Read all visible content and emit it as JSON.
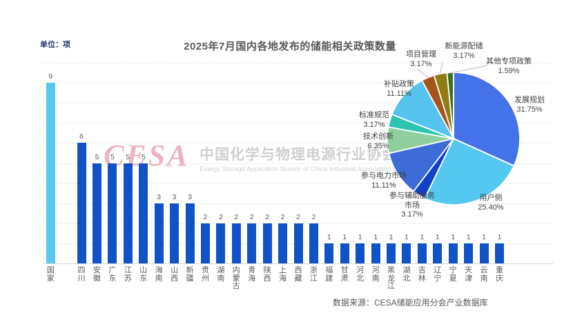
{
  "page": {
    "unit_label": "单位：项",
    "title": "2025年7月国内各地发布的储能相关政策数量",
    "source": "数据来源：CESA储能应用分会产业数据库",
    "watermark_logo": "CESA",
    "watermark_cn": "中国化学与物理电源行业协会储能应用分",
    "watermark_en": "Energy Storage Application Branch of China Industrial Association of Power Sou"
  },
  "colors": {
    "bar_national": "#5BC6F0",
    "bar_region": "#1152C6",
    "grid": "#E2E2E2",
    "axis": "#D6D6D6",
    "text_grey": "#595959"
  },
  "chart_data": [
    {
      "type": "bar",
      "title": "2025年7月国内各地发布的储能相关政策数量",
      "unit": "单位：项",
      "ylim": [
        0,
        10
      ],
      "grid": true,
      "gap_after_first": true,
      "categories": [
        "国家",
        "四川",
        "安徽",
        "广东",
        "江苏",
        "山东",
        "海南",
        "山西",
        "新疆",
        "贵州",
        "湖南",
        "内蒙古",
        "青海",
        "陕西",
        "上海",
        "西藏",
        "浙江",
        "福建",
        "甘肃",
        "河北",
        "河南",
        "黑龙江",
        "湖北",
        "吉林",
        "辽宁",
        "宁夏",
        "天津",
        "云南",
        "重庆"
      ],
      "values": [
        9,
        6,
        5,
        5,
        5,
        5,
        3,
        3,
        3,
        2,
        2,
        2,
        2,
        2,
        2,
        2,
        2,
        1,
        1,
        1,
        1,
        1,
        1,
        1,
        1,
        1,
        1,
        1,
        1
      ],
      "bar_colors": {
        "国家": "#5BC6F0",
        "default": "#1152C6"
      }
    },
    {
      "type": "pie",
      "legend_position": "outside-labels",
      "slices": [
        {
          "label": "发展规划",
          "pct": 31.75,
          "color": "#4472E8"
        },
        {
          "label": "用户侧",
          "pct": 25.4,
          "color": "#55C8F2"
        },
        {
          "label": "参与辅助服务市场",
          "pct": 3.17,
          "color": "#1240C8",
          "label_lines": [
            "参与辅助服务",
            "市场"
          ]
        },
        {
          "label": "参与电力市场",
          "pct": 11.11,
          "color": "#3D6BD8"
        },
        {
          "label": "技术创新",
          "pct": 6.35,
          "color": "#8FCF9E"
        },
        {
          "label": "标准规范",
          "pct": 3.17,
          "color": "#2FC4B2"
        },
        {
          "label": "补贴政策",
          "pct": 11.11,
          "color": "#56C4EE"
        },
        {
          "label": "项目管理",
          "pct": 3.17,
          "color": "#A5551C"
        },
        {
          "label": "新能源配储",
          "pct": 3.17,
          "color": "#8F7D14"
        },
        {
          "label": "其他专项政策",
          "pct": 1.59,
          "color": "#3C7021"
        }
      ]
    }
  ]
}
